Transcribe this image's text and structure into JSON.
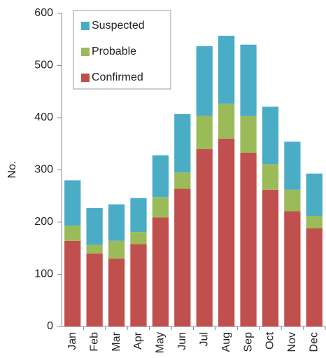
{
  "chart_data": {
    "type": "stacked-bar",
    "y_label": "No.",
    "categories": [
      "Jan",
      "Feb",
      "Mar",
      "Apr",
      "May",
      "Jun",
      "Jul",
      "Aug",
      "Sep",
      "Oct",
      "Nov",
      "Dec"
    ],
    "series": [
      {
        "name": "Confirmed",
        "color": "#c0504d",
        "values": [
          164,
          140,
          130,
          158,
          209,
          264,
          340,
          360,
          333,
          262,
          221,
          188
        ]
      },
      {
        "name": "Probable",
        "color": "#9bbb59",
        "values": [
          29,
          16,
          34,
          23,
          39,
          31,
          64,
          67,
          70,
          49,
          41,
          24
        ]
      },
      {
        "name": "Suspected",
        "color": "#4bacc6",
        "values": [
          87,
          71,
          70,
          65,
          80,
          112,
          133,
          130,
          137,
          110,
          92,
          81
        ]
      }
    ],
    "ylim": [
      0,
      600
    ],
    "yticks": [
      0,
      100,
      200,
      300,
      400,
      500,
      600
    ],
    "legend": "top-left"
  }
}
